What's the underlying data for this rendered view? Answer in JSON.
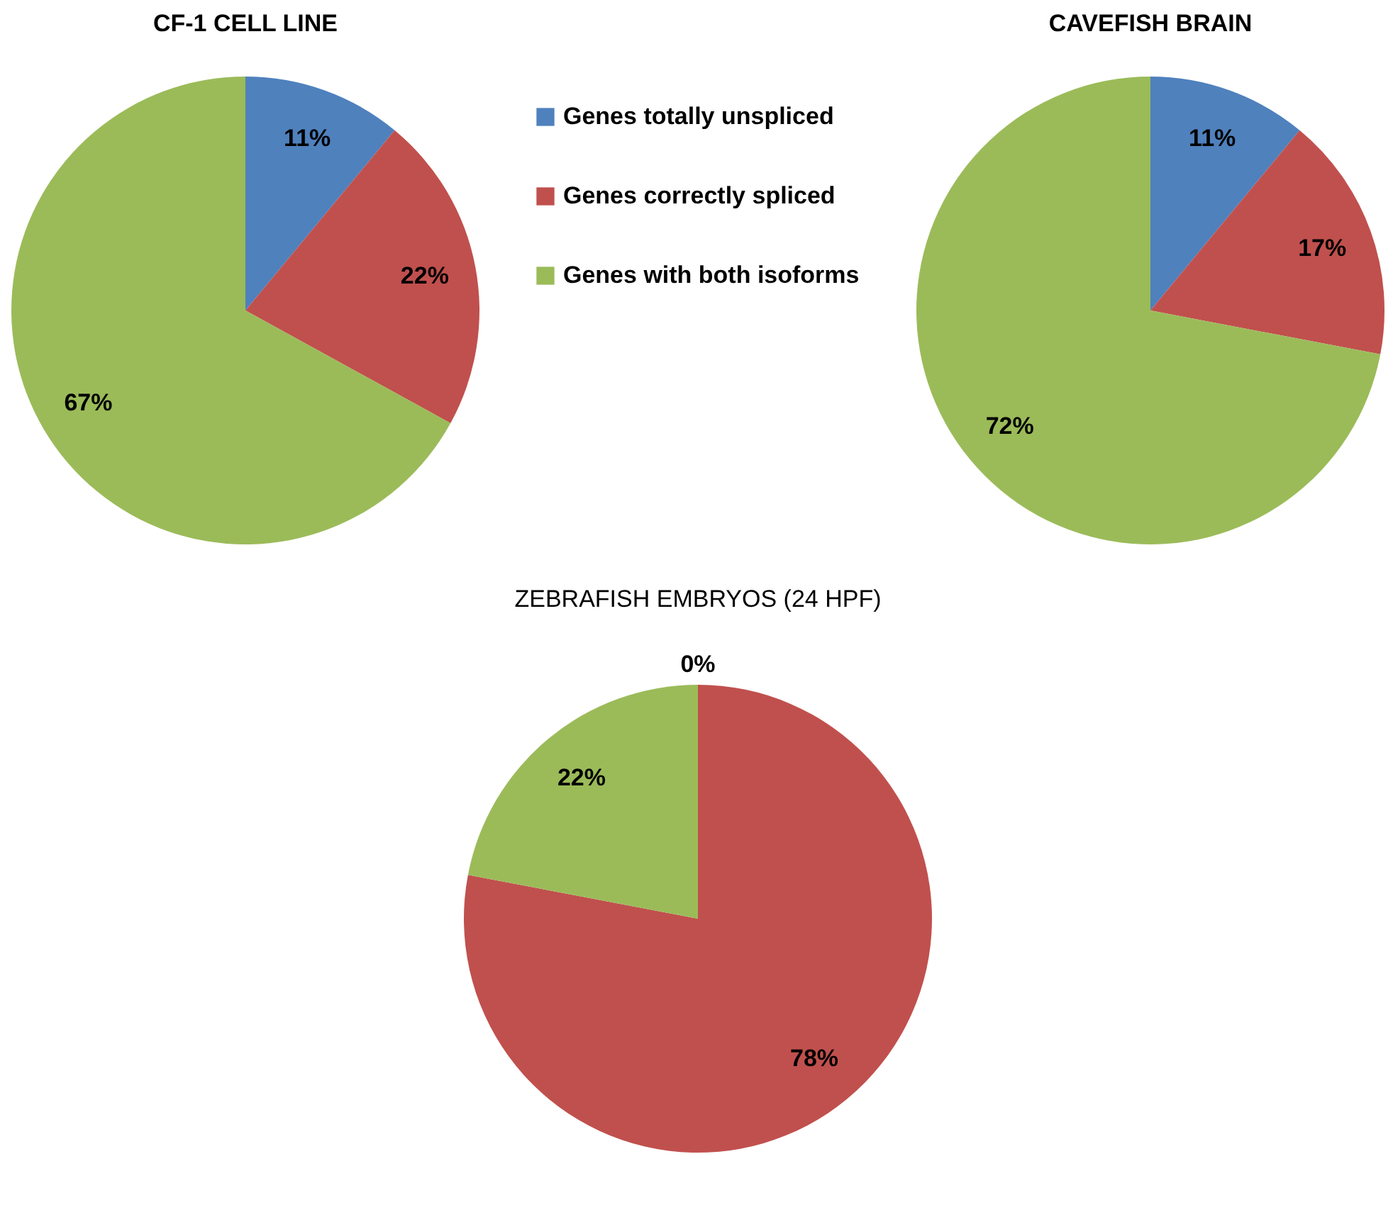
{
  "chart_data": [
    {
      "type": "pie",
      "title": "CF-1 CELL LINE",
      "categories": [
        "Genes totally unspliced",
        "Genes correctly spliced",
        "Genes with both isoforms"
      ],
      "values": [
        11,
        22,
        67
      ],
      "colors": [
        "#4f81bd",
        "#c0504d",
        "#9bbb59"
      ],
      "value_labels": [
        "11%",
        "22%",
        "67%"
      ],
      "legend": "right"
    },
    {
      "type": "pie",
      "title": "CAVEFISH  BRAIN",
      "categories": [
        null,
        null,
        null
      ],
      "values": [
        11,
        17,
        72
      ],
      "colors": [
        "#4f81bd",
        "#c0504d",
        "#9bbb59"
      ],
      "value_labels": [
        "11%",
        "17%",
        "72%"
      ]
    },
    {
      "type": "pie",
      "title": "ZEBRAFISH EMBRYOS (24 HPF)",
      "categories": [
        null,
        null,
        null
      ],
      "values": [
        0,
        78,
        22
      ],
      "colors": [
        "#4f81bd",
        "#c0504d",
        "#9bbb59"
      ],
      "value_labels": [
        "0%",
        "78%",
        "22%"
      ]
    }
  ]
}
